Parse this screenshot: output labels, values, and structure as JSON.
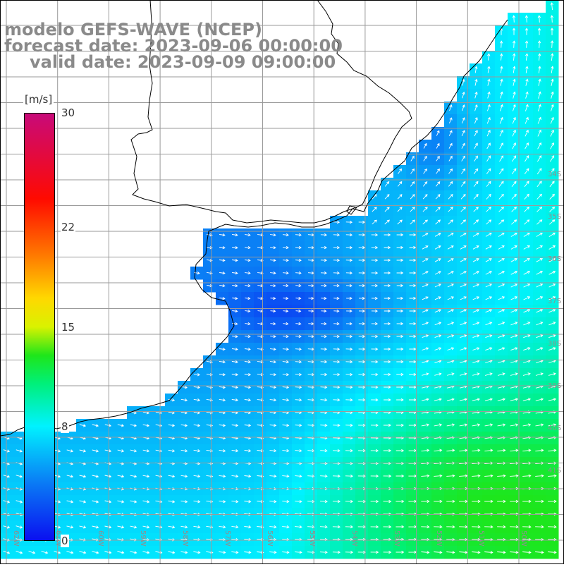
{
  "header": {
    "line1": "modelo GEFS-WAVE (NCEP)",
    "line2": "forecast date: 2023-09-06 00:00:00",
    "line3": "valid date: 2023-09-09 09:00:00"
  },
  "colorbar": {
    "units": "[m/s]",
    "min": 0,
    "max": 30,
    "ticks": [
      {
        "label": "30",
        "value": 30
      },
      {
        "label": "22",
        "value": 22
      },
      {
        "label": "15",
        "value": 15
      },
      {
        "label": "8",
        "value": 8
      },
      {
        "label": "0",
        "value": 0
      }
    ],
    "stops": [
      {
        "v": 0,
        "c": "#0a10f0"
      },
      {
        "v": 4,
        "c": "#0a7af5"
      },
      {
        "v": 8,
        "c": "#00f2ff"
      },
      {
        "v": 11,
        "c": "#00f07a"
      },
      {
        "v": 13,
        "c": "#1ee61a"
      },
      {
        "v": 15,
        "c": "#d9f200"
      },
      {
        "v": 17,
        "c": "#ffd800"
      },
      {
        "v": 20,
        "c": "#ff7a00"
      },
      {
        "v": 24,
        "c": "#ff0a00"
      },
      {
        "v": 30,
        "c": "#c80a7a"
      }
    ]
  },
  "map": {
    "land_color": "#ffffff",
    "grid_color": "#9a9a9a",
    "grid_label_color": "#8f8f8f",
    "arrow_color": "#ffffff",
    "lat_labels": [
      "34S",
      "35S",
      "36S",
      "37S",
      "38S",
      "39S",
      "40S",
      "41S"
    ],
    "lon_labels": [
      "62W",
      "61W",
      "60W",
      "59W",
      "58W",
      "57W",
      "56W",
      "55W",
      "54W",
      "53W",
      "52W",
      "51W",
      "50W"
    ]
  }
}
